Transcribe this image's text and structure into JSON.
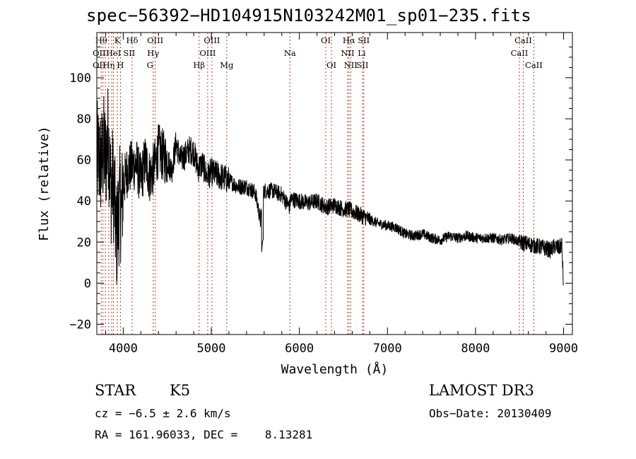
{
  "chart_data": {
    "type": "line",
    "title": "spec−56392−HD104915N103242M01_sp01−235.fits",
    "xlabel": "Wavelength (Å)",
    "ylabel": "Flux (relative)",
    "xlim": [
      3700,
      9100
    ],
    "ylim": [
      -25,
      122
    ],
    "xticks": [
      4000,
      5000,
      6000,
      7000,
      8000,
      9000
    ],
    "xtick_labels": [
      "4000",
      "5000",
      "6000",
      "7000",
      "8000",
      "9000"
    ],
    "yticks": [
      -20,
      0,
      20,
      40,
      60,
      80,
      100
    ],
    "ytick_labels": [
      "−20",
      "0",
      "20",
      "40",
      "60",
      "80",
      "100"
    ],
    "series": [
      {
        "name": "flux",
        "color": "#000000",
        "x": [
          3700,
          3750,
          3780,
          3800,
          3830,
          3860,
          3880,
          3900,
          3920,
          3940,
          3960,
          3980,
          4000,
          4050,
          4100,
          4150,
          4200,
          4250,
          4300,
          4350,
          4400,
          4450,
          4500,
          4550,
          4600,
          4650,
          4700,
          4750,
          4800,
          4850,
          4900,
          4950,
          5000,
          5100,
          5200,
          5300,
          5400,
          5500,
          5560,
          5580,
          5600,
          5700,
          5800,
          5890,
          5900,
          6000,
          6100,
          6200,
          6300,
          6400,
          6500,
          6560,
          6600,
          6700,
          6800,
          6900,
          7000,
          7100,
          7200,
          7300,
          7400,
          7500,
          7600,
          7700,
          7800,
          7900,
          8000,
          8100,
          8200,
          8300,
          8400,
          8500,
          8600,
          8700,
          8800,
          8850,
          8900,
          8950,
          8980,
          9000
        ],
        "y": [
          62,
          58,
          65,
          60,
          72,
          45,
          50,
          42,
          20,
          30,
          40,
          35,
          48,
          55,
          57,
          58,
          50,
          60,
          52,
          56,
          65,
          62,
          60,
          55,
          68,
          60,
          62,
          65,
          64,
          56,
          58,
          52,
          54,
          52,
          50,
          47,
          47,
          44,
          30,
          42,
          45,
          45,
          43,
          37,
          41,
          40,
          39,
          40,
          37,
          38,
          36,
          36,
          35,
          33,
          31,
          29,
          28,
          27,
          24,
          23,
          24,
          22,
          21,
          23,
          22,
          23,
          22,
          22,
          22,
          21,
          22,
          20,
          19,
          18,
          17,
          16,
          18,
          17,
          19,
          -3
        ]
      }
    ],
    "annotations": {
      "line_wavelengths": [
        3750,
        3770,
        3797,
        3835,
        3869,
        3889,
        3933,
        3968,
        4101,
        4340,
        4363,
        4861,
        4959,
        5007,
        5175,
        5893,
        6300,
        6364,
        6548,
        6563,
        6583,
        6717,
        6731,
        8498,
        8542,
        8662
      ]
    },
    "ion_labels": [
      {
        "text": "Hθ",
        "wl": 3750,
        "row": 0
      },
      {
        "text": "Hη",
        "wl": 3835,
        "row": 2
      },
      {
        "text": "K",
        "wl": 3933,
        "row": 0
      },
      {
        "text": "Hδ",
        "wl": 4101,
        "row": 0
      },
      {
        "text": "OII",
        "wl": 3727,
        "row": 1
      },
      {
        "text": "OII",
        "wl": 3727,
        "row": 2
      },
      {
        "text": "HeI",
        "wl": 3889,
        "row": 1
      },
      {
        "text": "SII",
        "wl": 4068,
        "row": 1
      },
      {
        "text": "H",
        "wl": 3968,
        "row": 2
      },
      {
        "text": "OIII",
        "wl": 4363,
        "row": 0
      },
      {
        "text": "Hγ",
        "wl": 4340,
        "row": 1
      },
      {
        "text": "G",
        "wl": 4304,
        "row": 2
      },
      {
        "text": "OIII",
        "wl": 5007,
        "row": 0
      },
      {
        "text": "OIII",
        "wl": 4959,
        "row": 1
      },
      {
        "text": "Hβ",
        "wl": 4861,
        "row": 2
      },
      {
        "text": "Mg",
        "wl": 5175,
        "row": 2
      },
      {
        "text": "Na",
        "wl": 5893,
        "row": 1
      },
      {
        "text": "OI",
        "wl": 6300,
        "row": 0
      },
      {
        "text": "OI",
        "wl": 6364,
        "row": 2
      },
      {
        "text": "Hα",
        "wl": 6563,
        "row": 0
      },
      {
        "text": "SII",
        "wl": 6731,
        "row": 0
      },
      {
        "text": "NII",
        "wl": 6548,
        "row": 1
      },
      {
        "text": "Li",
        "wl": 6708,
        "row": 1
      },
      {
        "text": "NII",
        "wl": 6583,
        "row": 2
      },
      {
        "text": "SII",
        "wl": 6717,
        "row": 2
      },
      {
        "text": "CaII",
        "wl": 8542,
        "row": 0
      },
      {
        "text": "CaII",
        "wl": 8498,
        "row": 1
      },
      {
        "text": "CaII",
        "wl": 8662,
        "row": 2
      }
    ]
  },
  "info": {
    "object_class": "STAR",
    "subclass": "K5",
    "survey": "LAMOST DR3",
    "cz": "cz = −6.5 ± 2.6 km/s",
    "obs_date": "Obs−Date: 20130409",
    "radec": "RA = 161.96033, DEC =    8.13281"
  },
  "colors": {
    "spectrum": "#000000",
    "line_marker": "#c0392b",
    "axis": "#000000"
  }
}
